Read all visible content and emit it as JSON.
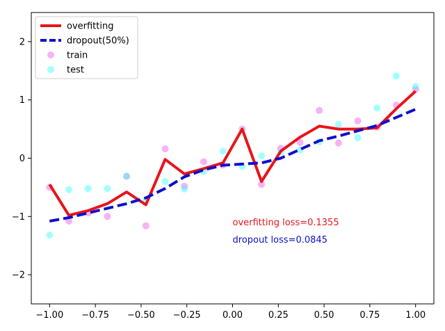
{
  "chart_data": {
    "type": "line",
    "xlim": [
      -1.1,
      1.1
    ],
    "ylim": [
      -2.5,
      2.5
    ],
    "xticks": [
      -1.0,
      -0.75,
      -0.5,
      -0.25,
      0.0,
      0.25,
      0.5,
      0.75,
      1.0
    ],
    "xtick_labels": [
      "−1.00",
      "−0.75",
      "−0.50",
      "−0.25",
      "0.00",
      "0.25",
      "0.50",
      "0.75",
      "1.00"
    ],
    "yticks": [
      -2,
      -1,
      0,
      1,
      2
    ],
    "ytick_labels": [
      "−2",
      "−1",
      "0",
      "1",
      "2"
    ],
    "grid": false,
    "legend_position": "top-left",
    "x": [
      -1.0,
      -0.8947,
      -0.7895,
      -0.6842,
      -0.5789,
      -0.4737,
      -0.3684,
      -0.2632,
      -0.1579,
      -0.0526,
      0.0526,
      0.1579,
      0.2632,
      0.3684,
      0.4737,
      0.5789,
      0.6842,
      0.7895,
      0.8947,
      1.0
    ],
    "series": [
      {
        "name": "overfitting",
        "kind": "line",
        "color": "#e8141a",
        "style": "solid",
        "values": [
          -0.45,
          -0.98,
          -0.9,
          -0.78,
          -0.58,
          -0.8,
          -0.02,
          -0.27,
          -0.18,
          -0.08,
          0.5,
          -0.4,
          0.12,
          0.36,
          0.55,
          0.5,
          0.5,
          0.52,
          0.85,
          1.15
        ]
      },
      {
        "name": "dropout(50%)",
        "kind": "line",
        "color": "#0f0fcc",
        "style": "dashed",
        "values": [
          -1.08,
          -1.02,
          -0.94,
          -0.86,
          -0.78,
          -0.68,
          -0.52,
          -0.32,
          -0.2,
          -0.12,
          -0.1,
          -0.08,
          0.0,
          0.15,
          0.3,
          0.38,
          0.47,
          0.56,
          0.7,
          0.84
        ]
      },
      {
        "name": "train",
        "kind": "scatter",
        "color": "#ee55ee",
        "values": [
          -0.5,
          -1.08,
          -0.94,
          -1.0,
          -0.31,
          -1.16,
          0.16,
          -0.48,
          -0.06,
          -0.12,
          0.5,
          -0.45,
          0.17,
          0.27,
          0.82,
          0.26,
          0.64,
          0.53,
          0.91,
          1.18
        ]
      },
      {
        "name": "test",
        "kind": "scatter",
        "color": "#33ffff",
        "values": [
          -1.32,
          -0.54,
          -0.52,
          -0.52,
          -0.31,
          -0.72,
          -0.4,
          -0.53,
          -0.23,
          0.12,
          -0.14,
          0.04,
          0.11,
          0.14,
          0.28,
          0.58,
          0.35,
          0.86,
          1.41,
          1.23
        ]
      }
    ],
    "annotations": [
      {
        "text": "overfitting loss=0.1355",
        "x": 0.0,
        "y": -1.15,
        "color": "#e8141a"
      },
      {
        "text": "dropout loss=0.0845",
        "x": 0.0,
        "y": -1.45,
        "color": "#0f0fcc"
      }
    ]
  }
}
